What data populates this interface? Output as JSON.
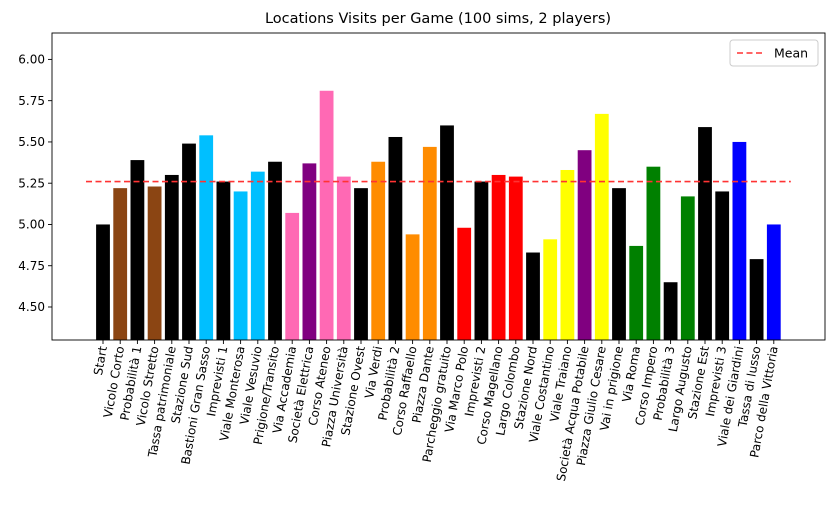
{
  "chart_data": {
    "type": "bar",
    "title": "Locations Visits per Game (100 sims, 2 players)",
    "xlabel": "",
    "ylabel": "",
    "ylim": [
      4.3,
      6.16
    ],
    "yticks": [
      4.5,
      4.75,
      5.0,
      5.25,
      5.5,
      5.75,
      6.0
    ],
    "ytick_labels": [
      "4.50",
      "4.75",
      "5.00",
      "5.25",
      "5.50",
      "5.75",
      "6.00"
    ],
    "grid": false,
    "legend": {
      "position": "top-right",
      "entries": [
        "Mean"
      ]
    },
    "mean": {
      "label": "Mean",
      "value": 5.26,
      "color": "#ff3333",
      "style": "dashed"
    },
    "categories": [
      "Start",
      "Vicolo Corto",
      "Probabilità 1",
      "Vicolo Stretto",
      "Tassa patrimoniale",
      "Stazione Sud",
      "Bastioni Gran Sasso",
      "Imprevisti 1",
      "Viale Monterosa",
      "Viale Vesuvio",
      "Prigione/Transito",
      "Via Accademia",
      "Società Elettrica",
      "Corso Ateneo",
      "Piazza Università",
      "Stazione Ovest",
      "Via Verdi",
      "Probabilità 2",
      "Corso Raffaello",
      "Piazza Dante",
      "Parcheggio gratuito",
      "Via Marco Polo",
      "Imprevisti 2",
      "Corso Magellano",
      "Largo Colombo",
      "Stazione Nord",
      "Viale Costantino",
      "Viale Traiano",
      "Società Acqua Potabile",
      "Piazza Giulio Cesare",
      "Vai in prigione",
      "Via Roma",
      "Corso Impero",
      "Probabilità 3",
      "Largo Augusto",
      "Stazione Est",
      "Imprevisti 3",
      "Viale dei Giardini",
      "Tassa di lusso",
      "Parco della Vittoria"
    ],
    "values": [
      5.0,
      5.22,
      5.39,
      5.23,
      5.3,
      5.49,
      5.54,
      5.26,
      5.2,
      5.32,
      5.38,
      5.07,
      5.37,
      5.81,
      5.29,
      5.22,
      5.38,
      5.53,
      4.94,
      5.47,
      5.6,
      4.98,
      5.26,
      5.3,
      5.29,
      4.83,
      4.91,
      5.33,
      5.45,
      5.67,
      5.22,
      4.87,
      5.35,
      4.65,
      5.17,
      5.59,
      5.2,
      5.5,
      4.79,
      5.0
    ],
    "colors": [
      "#000000",
      "#8b4513",
      "#000000",
      "#8b4513",
      "#000000",
      "#000000",
      "#00bfff",
      "#000000",
      "#00bfff",
      "#00bfff",
      "#000000",
      "#ff69b4",
      "#800080",
      "#ff69b4",
      "#ff69b4",
      "#000000",
      "#ff8c00",
      "#000000",
      "#ff8c00",
      "#ff8c00",
      "#000000",
      "#ff0000",
      "#000000",
      "#ff0000",
      "#ff0000",
      "#000000",
      "#ffff00",
      "#ffff00",
      "#800080",
      "#ffff00",
      "#000000",
      "#008000",
      "#008000",
      "#000000",
      "#008000",
      "#000000",
      "#000000",
      "#0000ff",
      "#000000",
      "#0000ff"
    ]
  }
}
